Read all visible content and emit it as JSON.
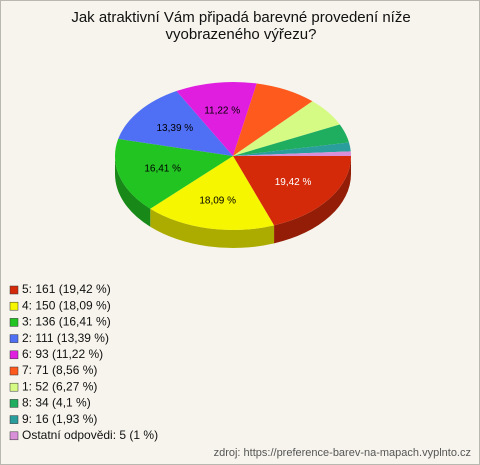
{
  "chart_data": {
    "type": "pie",
    "title": "Jak atraktivní Vám připadá barevné provedení níže vyobrazeného výřezu?",
    "categories": [
      "5: 161 (19,42 %)",
      "4: 150 (18,09 %)",
      "3: 136 (16,41 %)",
      "2: 111 (13,39 %)",
      "6: 93 (11,22 %)",
      "7: 71 (8,56 %)",
      "1: 52 (6,27 %)",
      "8: 34 (4,1 %)",
      "9: 16 (1,93 %)",
      "Ostatní odpovědi: 5 (1 %)"
    ],
    "values": [
      19.42,
      18.09,
      16.41,
      13.39,
      11.22,
      8.56,
      6.27,
      4.1,
      1.93,
      1
    ],
    "value_labels": [
      "19,42 %",
      "18,09 %",
      "16,41 %",
      "13,39 %",
      "11,22 %",
      null,
      null,
      null,
      null,
      null
    ],
    "colors": [
      "#d42a0a",
      "#f6f600",
      "#22c422",
      "#4f6ff5",
      "#e01ee0",
      "#ff5a1e",
      "#d6fb84",
      "#1fae60",
      "#2a9d9d",
      "#d890d8"
    ],
    "source": "zdroj: https://preference-barev-na-mapach.vyplnto.cz"
  }
}
